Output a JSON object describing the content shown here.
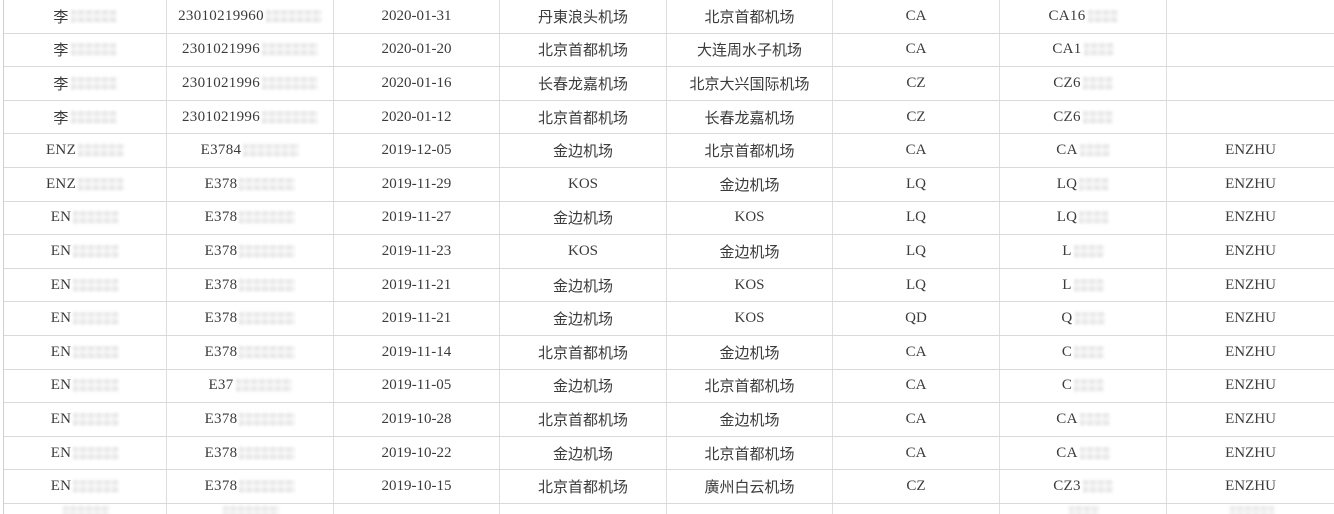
{
  "app_context": "spreadsheet-flight-records-table",
  "colors": {
    "background": "#ffffff",
    "grid_line": "#d9d9d9",
    "text": "#3b3b3b",
    "row_marker_green": "#4e7f63",
    "redaction_gray": "#c9c9c9"
  },
  "table": {
    "note_visible_columns": [
      "passenger_name",
      "id_number",
      "date",
      "departure_airport",
      "arrival_airport",
      "airline_code",
      "flight_number",
      "passenger_en_name"
    ],
    "rows": [
      {
        "name_prefix": "李",
        "id_prefix": "23010219960",
        "date": "2020-01-31",
        "departure": "丹東浪头机场",
        "arrival": "北京首都机场",
        "airline": "CA",
        "flight_prefix": "CA16",
        "en_name": ""
      },
      {
        "name_prefix": "李",
        "id_prefix": "2301021996",
        "date": "2020-01-20",
        "departure": "北京首都机场",
        "arrival": "大连周水子机场",
        "airline": "CA",
        "flight_prefix": "CA1",
        "en_name": ""
      },
      {
        "name_prefix": "李",
        "id_prefix": "2301021996",
        "date": "2020-01-16",
        "departure": "长春龙嘉机场",
        "arrival": "北京大兴国际机场",
        "airline": "CZ",
        "flight_prefix": "CZ6",
        "en_name": ""
      },
      {
        "name_prefix": "李",
        "id_prefix": "2301021996",
        "date": "2020-01-12",
        "departure": "北京首都机场",
        "arrival": "长春龙嘉机场",
        "airline": "CZ",
        "flight_prefix": "CZ6",
        "en_name": ""
      },
      {
        "name_prefix": "ENZ",
        "id_prefix": "E3784",
        "date": "2019-12-05",
        "departure": "金边机场",
        "arrival": "北京首都机场",
        "airline": "CA",
        "flight_prefix": "CA",
        "en_name": "ENZHU"
      },
      {
        "name_prefix": "ENZ",
        "id_prefix": "E378",
        "date": "2019-11-29",
        "departure": "KOS",
        "arrival": "金边机场",
        "airline": "LQ",
        "flight_prefix": "LQ",
        "en_name": "ENZHU"
      },
      {
        "name_prefix": "EN",
        "id_prefix": "E378",
        "date": "2019-11-27",
        "departure": "金边机场",
        "arrival": "KOS",
        "airline": "LQ",
        "flight_prefix": "LQ",
        "en_name": "ENZHU"
      },
      {
        "name_prefix": "EN",
        "id_prefix": "E378",
        "date": "2019-11-23",
        "departure": "KOS",
        "arrival": "金边机场",
        "airline": "LQ",
        "flight_prefix": "L",
        "en_name": "ENZHU"
      },
      {
        "name_prefix": "EN",
        "id_prefix": "E378",
        "date": "2019-11-21",
        "departure": "金边机场",
        "arrival": "KOS",
        "airline": "LQ",
        "flight_prefix": "L",
        "en_name": "ENZHU"
      },
      {
        "name_prefix": "EN",
        "id_prefix": "E378",
        "date": "2019-11-21",
        "departure": "金边机场",
        "arrival": "KOS",
        "airline": "QD",
        "flight_prefix": "Q",
        "en_name": "ENZHU"
      },
      {
        "name_prefix": "EN",
        "id_prefix": "E378",
        "date": "2019-11-14",
        "departure": "北京首都机场",
        "arrival": "金边机场",
        "airline": "CA",
        "flight_prefix": "C",
        "en_name": "ENZHU"
      },
      {
        "name_prefix": "EN",
        "id_prefix": "E37",
        "date": "2019-11-05",
        "departure": "金边机场",
        "arrival": "北京首都机场",
        "airline": "CA",
        "flight_prefix": "C",
        "en_name": "ENZHU"
      },
      {
        "name_prefix": "EN",
        "id_prefix": "E378",
        "date": "2019-10-28",
        "departure": "北京首都机场",
        "arrival": "金边机场",
        "airline": "CA",
        "flight_prefix": "CA",
        "en_name": "ENZHU"
      },
      {
        "name_prefix": "EN",
        "id_prefix": "E378",
        "date": "2019-10-22",
        "departure": "金边机场",
        "arrival": "北京首都机场",
        "airline": "CA",
        "flight_prefix": "CA",
        "en_name": "ENZHU",
        "marker": true
      },
      {
        "name_prefix": "EN",
        "id_prefix": "E378",
        "date": "2019-10-15",
        "departure": "北京首都机场",
        "arrival": "廣州白云机场",
        "airline": "CZ",
        "flight_prefix": "CZ3",
        "en_name": "ENZHU"
      },
      {
        "name_prefix": "",
        "id_prefix": "",
        "date": "",
        "departure": "",
        "arrival": "",
        "airline": "",
        "flight_prefix": "",
        "en_name": "",
        "marker": true,
        "partial": true
      }
    ]
  }
}
